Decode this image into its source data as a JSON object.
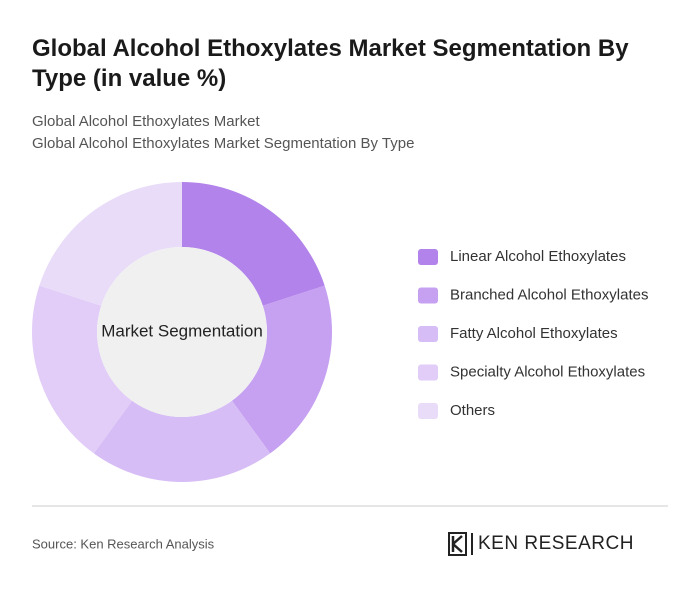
{
  "chart_data": {
    "type": "donut",
    "title": "Global Alcohol Ethoxylates Market Segmentation By Type (in value %)",
    "subtitles": [
      "Global Alcohol Ethoxylates Market",
      "Global Alcohol Ethoxylates Market Segmentation By Type"
    ],
    "center_label": "Market Segmentation",
    "categories": [
      "Linear Alcohol Ethoxylates",
      "Branched Alcohol Ethoxylates",
      "Fatty Alcohol Ethoxylates",
      "Specialty Alcohol Ethoxylates",
      "Others"
    ],
    "values": [
      20,
      20,
      20,
      20,
      20
    ],
    "colors": [
      "#b283ea",
      "#c6a0f1",
      "#d7bdf5",
      "#e1cdf7",
      "#e9dcf9"
    ],
    "source": "Source: Ken Research Analysis",
    "brand": "KEN RESEARCH"
  }
}
